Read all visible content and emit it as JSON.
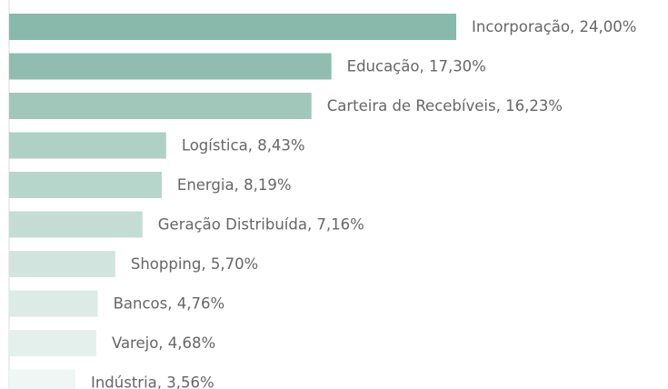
{
  "chart_data": {
    "type": "bar",
    "orientation": "horizontal",
    "values": [
      24.0,
      17.3,
      16.23,
      8.43,
      8.19,
      7.16,
      5.7,
      4.76,
      4.68,
      3.56
    ],
    "value_labels": [
      "Incorporação, 24,00%",
      "Educação, 17,30%",
      "Carteira de Recebíveis, 16,23%",
      "Logística, 8,43%",
      "Energia, 8,19%",
      "Geração Distribuída, 7,16%",
      "Shopping, 5,70%",
      "Bancos, 4,76%",
      "Varejo, 4,68%",
      "Indústria, 3,56%"
    ],
    "colors": [
      "#89b9aa",
      "#90bdaf",
      "#a0c7ba",
      "#aed0c5",
      "#b6d5cb",
      "#c3ddd4",
      "#d1e5de",
      "#dcebe6",
      "#e4f0ec",
      "#eff6f3"
    ],
    "xlim": [
      0,
      24
    ]
  }
}
